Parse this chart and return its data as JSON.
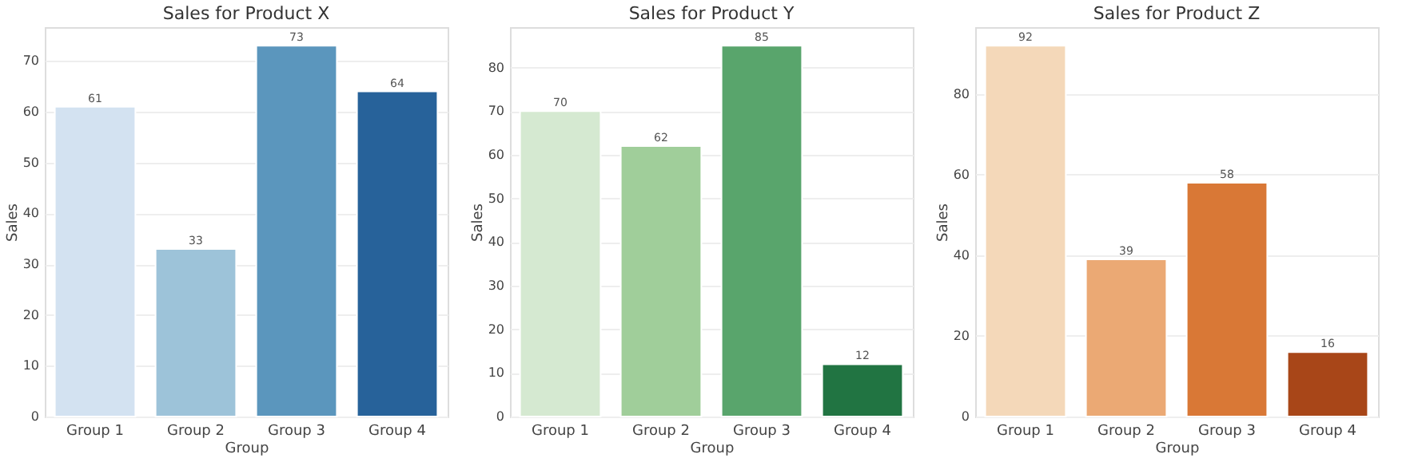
{
  "chart_data": [
    {
      "type": "bar",
      "title": "Sales for Product X",
      "xlabel": "Group",
      "ylabel": "Sales",
      "categories": [
        "Group 1",
        "Group 2",
        "Group 3",
        "Group 4"
      ],
      "values": [
        61,
        33,
        73,
        64
      ],
      "colors": [
        "#d3e2f1",
        "#9dc3d9",
        "#5b96bd",
        "#27629a"
      ],
      "ylim": [
        0,
        76.65
      ],
      "yticks": [
        0,
        10,
        20,
        30,
        40,
        50,
        60,
        70
      ],
      "grid": "y",
      "data_labels": true
    },
    {
      "type": "bar",
      "title": "Sales for Product Y",
      "xlabel": "Group",
      "ylabel": "Sales",
      "categories": [
        "Group 1",
        "Group 2",
        "Group 3",
        "Group 4"
      ],
      "values": [
        70,
        62,
        85,
        12
      ],
      "colors": [
        "#d5e9d1",
        "#a0ce9a",
        "#59a56c",
        "#217442"
      ],
      "ylim": [
        0,
        89.25
      ],
      "yticks": [
        0,
        10,
        20,
        30,
        40,
        50,
        60,
        70,
        80
      ],
      "grid": "y",
      "data_labels": true
    },
    {
      "type": "bar",
      "title": "Sales for Product Z",
      "xlabel": "Group",
      "ylabel": "Sales",
      "categories": [
        "Group 1",
        "Group 2",
        "Group 3",
        "Group 4"
      ],
      "values": [
        92,
        39,
        58,
        16
      ],
      "colors": [
        "#f4d8b9",
        "#eba974",
        "#d97836",
        "#a84618"
      ],
      "ylim": [
        0,
        96.6
      ],
      "yticks": [
        0,
        20,
        40,
        60,
        80
      ],
      "grid": "y",
      "data_labels": true
    }
  ]
}
